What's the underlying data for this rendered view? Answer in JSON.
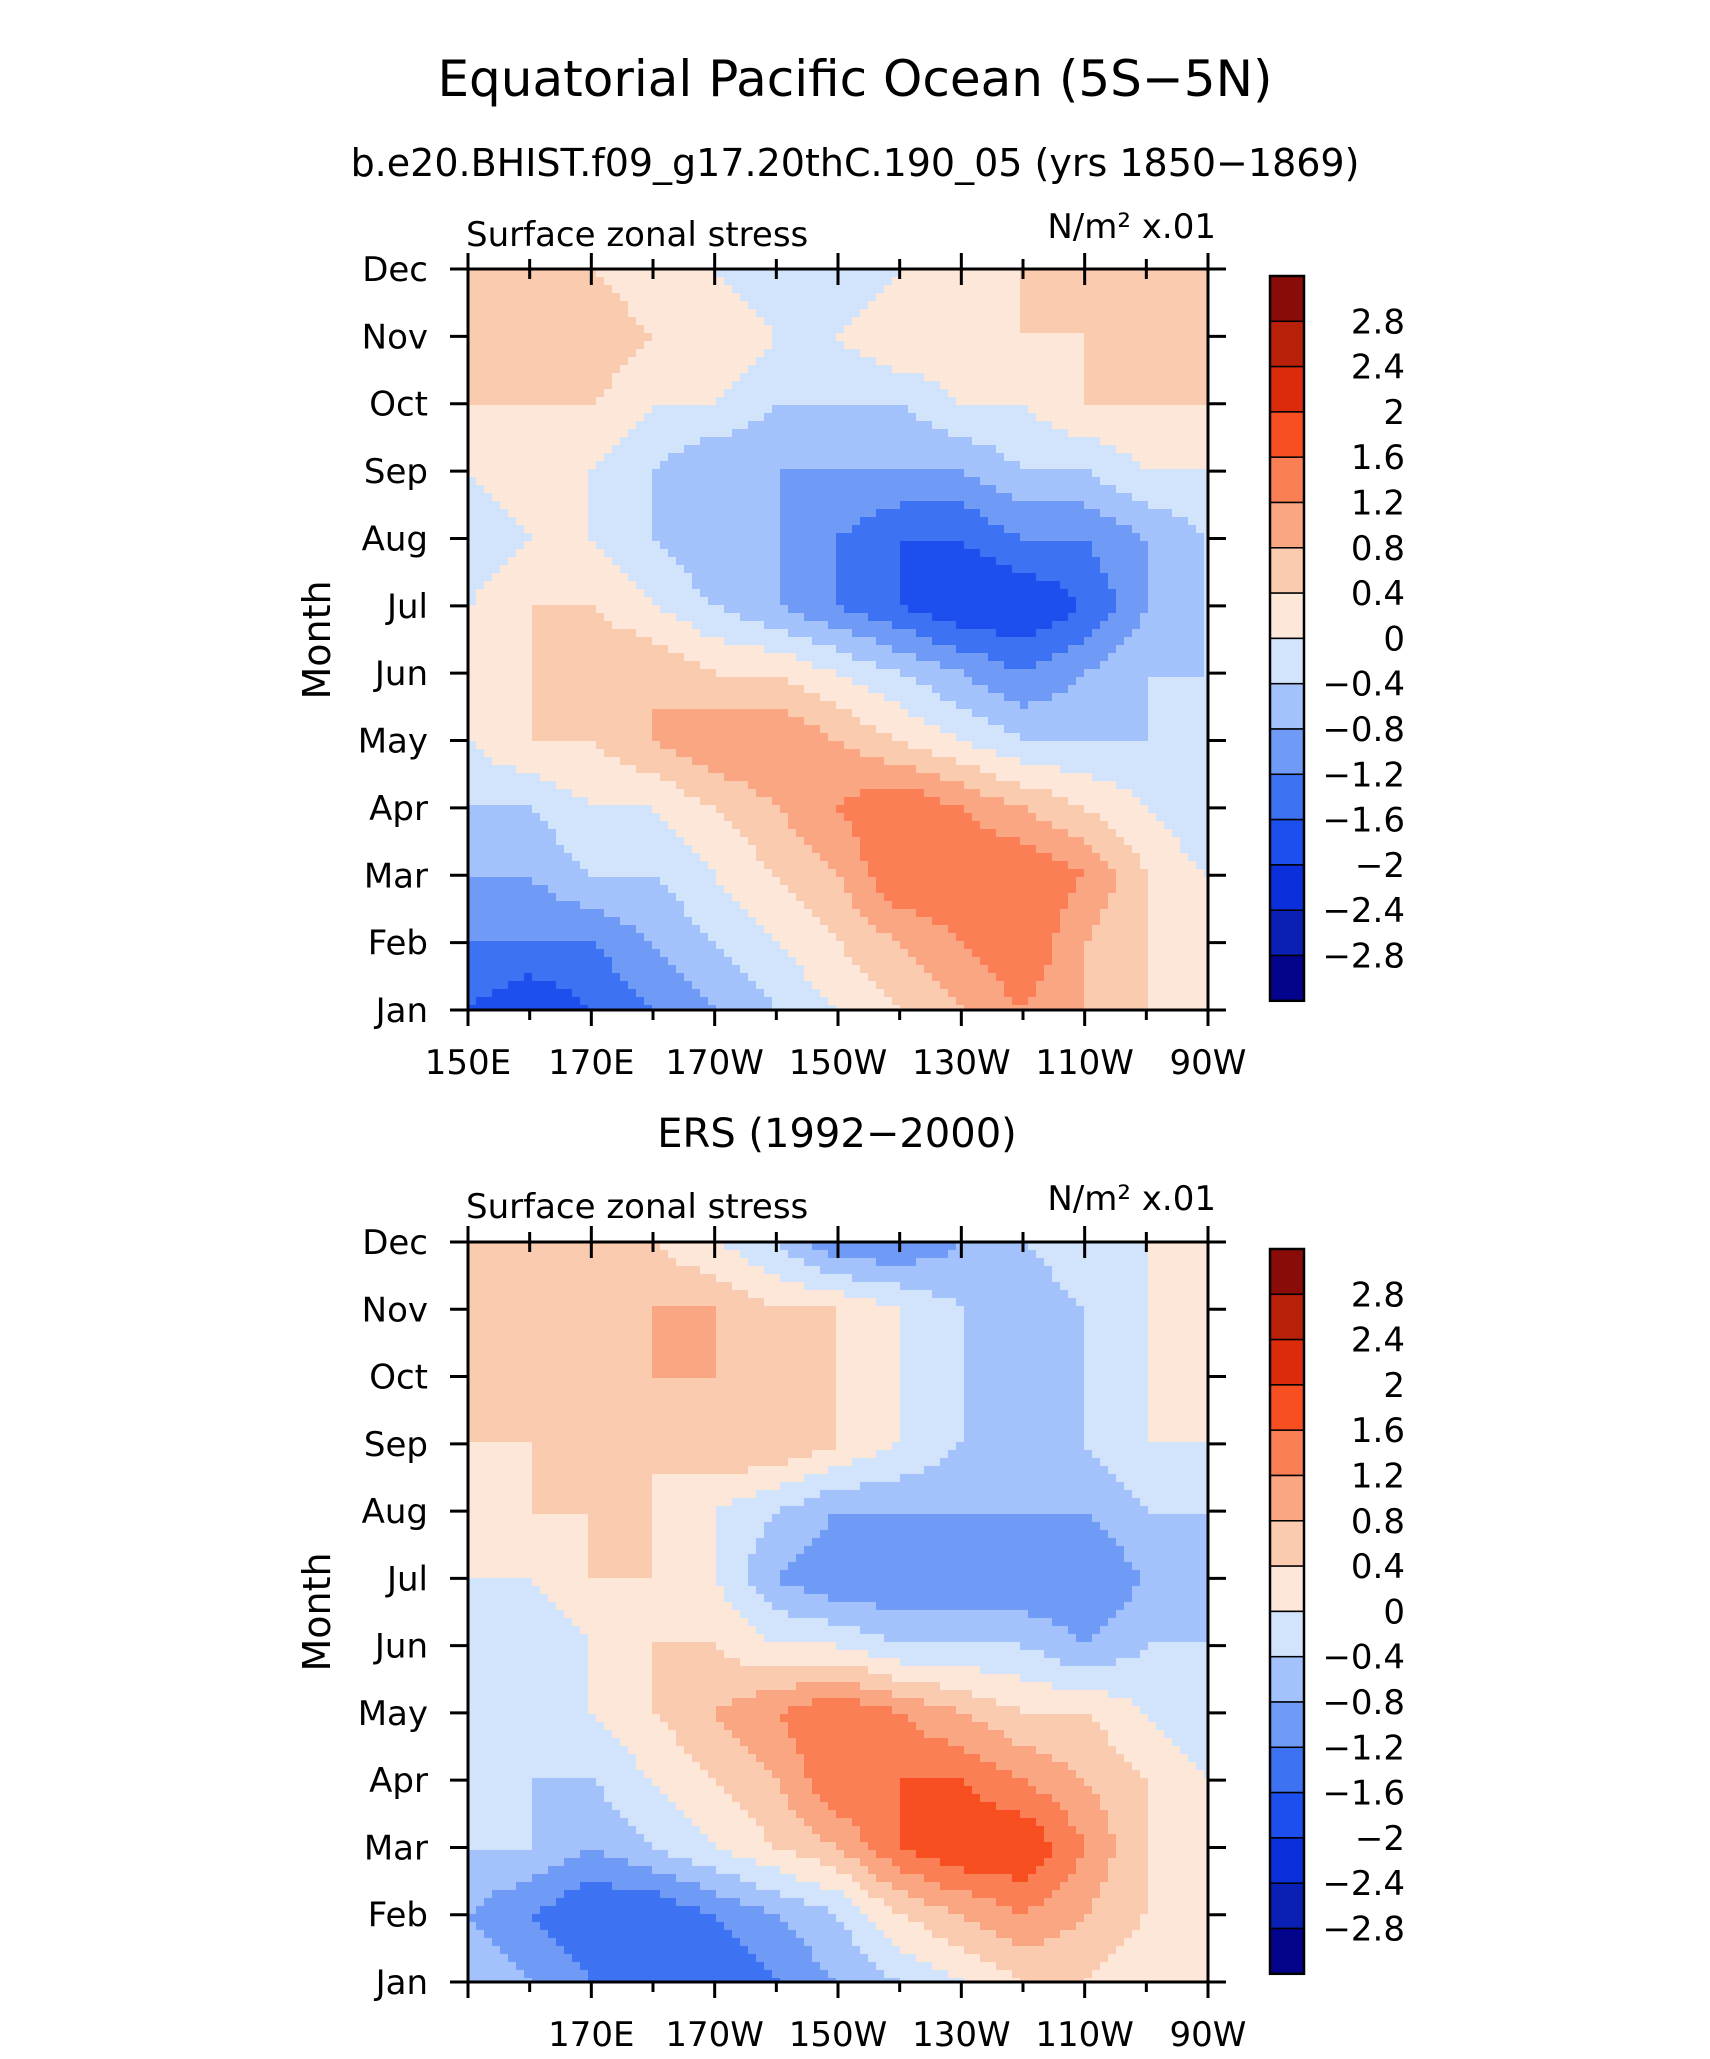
{
  "figure": {
    "title": "Equatorial Pacific Ocean (5S−5N)",
    "subtitle": "b.e20.BHIST.f09_g17.20thC.190_05 (yrs 1850−1869)"
  },
  "chart_data": [
    {
      "type": "heatmap",
      "panel_title": "",
      "left_label": "Surface zonal stress",
      "units_label": "N/m² x.01",
      "ylabel": "Month",
      "y_ticks": [
        "Jan",
        "Feb",
        "Mar",
        "Apr",
        "May",
        "Jun",
        "Jul",
        "Aug",
        "Sep",
        "Oct",
        "Nov",
        "Dec"
      ],
      "x_ticks": [
        "150E",
        "170E",
        "170W",
        "150W",
        "130W",
        "110W",
        "90W"
      ],
      "x_tick_values": [
        150,
        170,
        190,
        210,
        230,
        250,
        270
      ],
      "xlim": [
        150,
        270
      ],
      "ylim": [
        1,
        12
      ],
      "x_grid": [
        150,
        160,
        170,
        180,
        190,
        200,
        210,
        220,
        230,
        240,
        250,
        260,
        270
      ],
      "z": [
        [
          -1.6,
          -2.0,
          -1.6,
          -1.2,
          -0.8,
          -0.4,
          0.0,
          0.4,
          0.8,
          1.2,
          0.8,
          0.4,
          0.0
        ],
        [
          -1.2,
          -1.2,
          -1.2,
          -0.8,
          -0.4,
          0.0,
          0.4,
          0.8,
          1.2,
          1.6,
          0.8,
          0.4,
          0.0
        ],
        [
          -0.8,
          -0.8,
          -0.4,
          -0.4,
          0.0,
          0.4,
          0.8,
          1.6,
          1.6,
          1.6,
          1.2,
          0.4,
          0.0
        ],
        [
          -0.4,
          -0.4,
          0.0,
          0.0,
          0.4,
          0.8,
          1.2,
          1.6,
          1.2,
          0.8,
          0.4,
          0.0,
          -0.4
        ],
        [
          0.0,
          0.4,
          0.4,
          0.8,
          1.2,
          1.2,
          0.8,
          0.4,
          0.0,
          -0.4,
          -0.4,
          -0.4,
          -0.4
        ],
        [
          0.4,
          0.4,
          0.8,
          0.8,
          0.4,
          0.4,
          0.0,
          -0.4,
          -0.8,
          -1.2,
          -0.8,
          -0.4,
          -0.4
        ],
        [
          0.0,
          0.4,
          0.4,
          0.0,
          -0.4,
          -0.8,
          -1.2,
          -1.6,
          -2.0,
          -2.0,
          -1.6,
          -0.8,
          -0.4
        ],
        [
          -0.4,
          0.0,
          0.0,
          -0.4,
          -0.8,
          -0.8,
          -1.2,
          -1.6,
          -1.6,
          -1.2,
          -1.2,
          -0.8,
          -0.4
        ],
        [
          0.0,
          0.4,
          0.0,
          -0.4,
          -0.8,
          -0.8,
          -0.8,
          -0.8,
          -0.8,
          -0.4,
          -0.4,
          0.0,
          0.0
        ],
        [
          0.4,
          0.4,
          0.4,
          0.0,
          0.0,
          -0.4,
          -0.4,
          -0.4,
          0.0,
          0.0,
          0.4,
          0.4,
          0.4
        ],
        [
          0.8,
          0.8,
          0.8,
          0.4,
          0.4,
          0.0,
          0.0,
          0.4,
          0.4,
          0.4,
          0.4,
          0.4,
          0.4
        ],
        [
          0.4,
          0.4,
          0.4,
          0.0,
          0.0,
          -0.4,
          -0.4,
          0.0,
          0.0,
          0.4,
          0.4,
          0.4,
          0.4
        ]
      ]
    },
    {
      "type": "heatmap",
      "panel_title": "ERS (1992−2000)",
      "left_label": "Surface zonal stress",
      "units_label": "N/m² x.01",
      "ylabel": "Month",
      "y_ticks": [
        "Jan",
        "Feb",
        "Mar",
        "Apr",
        "May",
        "Jun",
        "Jul",
        "Aug",
        "Sep",
        "Oct",
        "Nov",
        "Dec"
      ],
      "x_ticks": [
        "170E",
        "170W",
        "150W",
        "130W",
        "110W",
        "90W"
      ],
      "x_tick_values": [
        170,
        190,
        210,
        230,
        250,
        270
      ],
      "xlim": [
        150,
        270
      ],
      "ylim": [
        1,
        12
      ],
      "x_grid": [
        150,
        160,
        170,
        180,
        190,
        200,
        210,
        220,
        230,
        240,
        250,
        260,
        270
      ],
      "z": [
        [
          -0.4,
          -0.8,
          -1.2,
          -1.6,
          -1.6,
          -1.2,
          -0.8,
          -0.4,
          0.0,
          0.4,
          0.4,
          0.0,
          0.0
        ],
        [
          -0.8,
          -1.2,
          -1.6,
          -1.6,
          -1.2,
          -0.8,
          -0.4,
          0.4,
          0.8,
          1.2,
          0.8,
          0.4,
          0.0
        ],
        [
          -0.4,
          -0.4,
          -0.8,
          -0.4,
          0.0,
          0.4,
          0.8,
          1.6,
          2.0,
          2.0,
          1.2,
          0.4,
          0.0
        ],
        [
          0.0,
          -0.4,
          -0.4,
          0.0,
          0.4,
          0.8,
          1.6,
          1.6,
          1.6,
          1.2,
          0.8,
          0.4,
          0.0
        ],
        [
          0.0,
          -0.4,
          0.0,
          0.4,
          0.8,
          1.2,
          1.6,
          1.2,
          0.8,
          0.4,
          0.4,
          0.0,
          -0.4
        ],
        [
          -0.4,
          -0.4,
          0.0,
          0.4,
          0.4,
          0.0,
          0.0,
          -0.4,
          -0.4,
          -0.4,
          -0.8,
          -0.4,
          -0.4
        ],
        [
          0.0,
          0.0,
          0.4,
          0.4,
          0.0,
          -0.8,
          -1.2,
          -1.2,
          -1.2,
          -1.2,
          -1.2,
          -0.8,
          -0.8
        ],
        [
          0.0,
          0.4,
          0.4,
          0.4,
          0.0,
          -0.4,
          -0.8,
          -0.8,
          -0.8,
          -0.8,
          -0.8,
          -0.4,
          -0.4
        ],
        [
          0.4,
          0.4,
          0.4,
          0.4,
          0.8,
          0.8,
          0.4,
          0.0,
          -0.4,
          -0.4,
          -0.4,
          0.0,
          0.0
        ],
        [
          0.4,
          0.4,
          0.4,
          0.8,
          0.8,
          0.4,
          0.4,
          0.0,
          -0.4,
          -0.8,
          -0.4,
          0.0,
          0.0
        ],
        [
          0.4,
          0.4,
          0.8,
          0.8,
          0.8,
          0.4,
          0.4,
          0.0,
          -0.4,
          -0.8,
          -0.4,
          0.0,
          0.0
        ],
        [
          0.4,
          0.8,
          0.4,
          0.4,
          0.0,
          -0.4,
          -1.2,
          -1.2,
          -0.8,
          -0.4,
          0.0,
          0.0,
          0.4
        ]
      ]
    }
  ],
  "colorbar": {
    "labels": [
      "2.8",
      "2.4",
      "2",
      "1.6",
      "1.2",
      "0.8",
      "0.4",
      "0",
      "−0.4",
      "−0.8",
      "−1.2",
      "−1.6",
      "−2",
      "−2.4",
      "−2.8"
    ],
    "levels": [
      -2.8,
      -2.4,
      -2.0,
      -1.6,
      -1.2,
      -0.8,
      -0.4,
      0,
      0.4,
      0.8,
      1.2,
      1.6,
      2.0,
      2.4,
      2.8
    ],
    "colors": [
      "#04038c",
      "#0a1fb4",
      "#0c2fdc",
      "#1d4fee",
      "#3d72f2",
      "#6f9bf6",
      "#a3c1fa",
      "#d1e4fc",
      "#fde7d8",
      "#fbcbaf",
      "#fba683",
      "#fb7f55",
      "#f74f22",
      "#dc2b0a",
      "#b8200a",
      "#8a0c08"
    ]
  }
}
